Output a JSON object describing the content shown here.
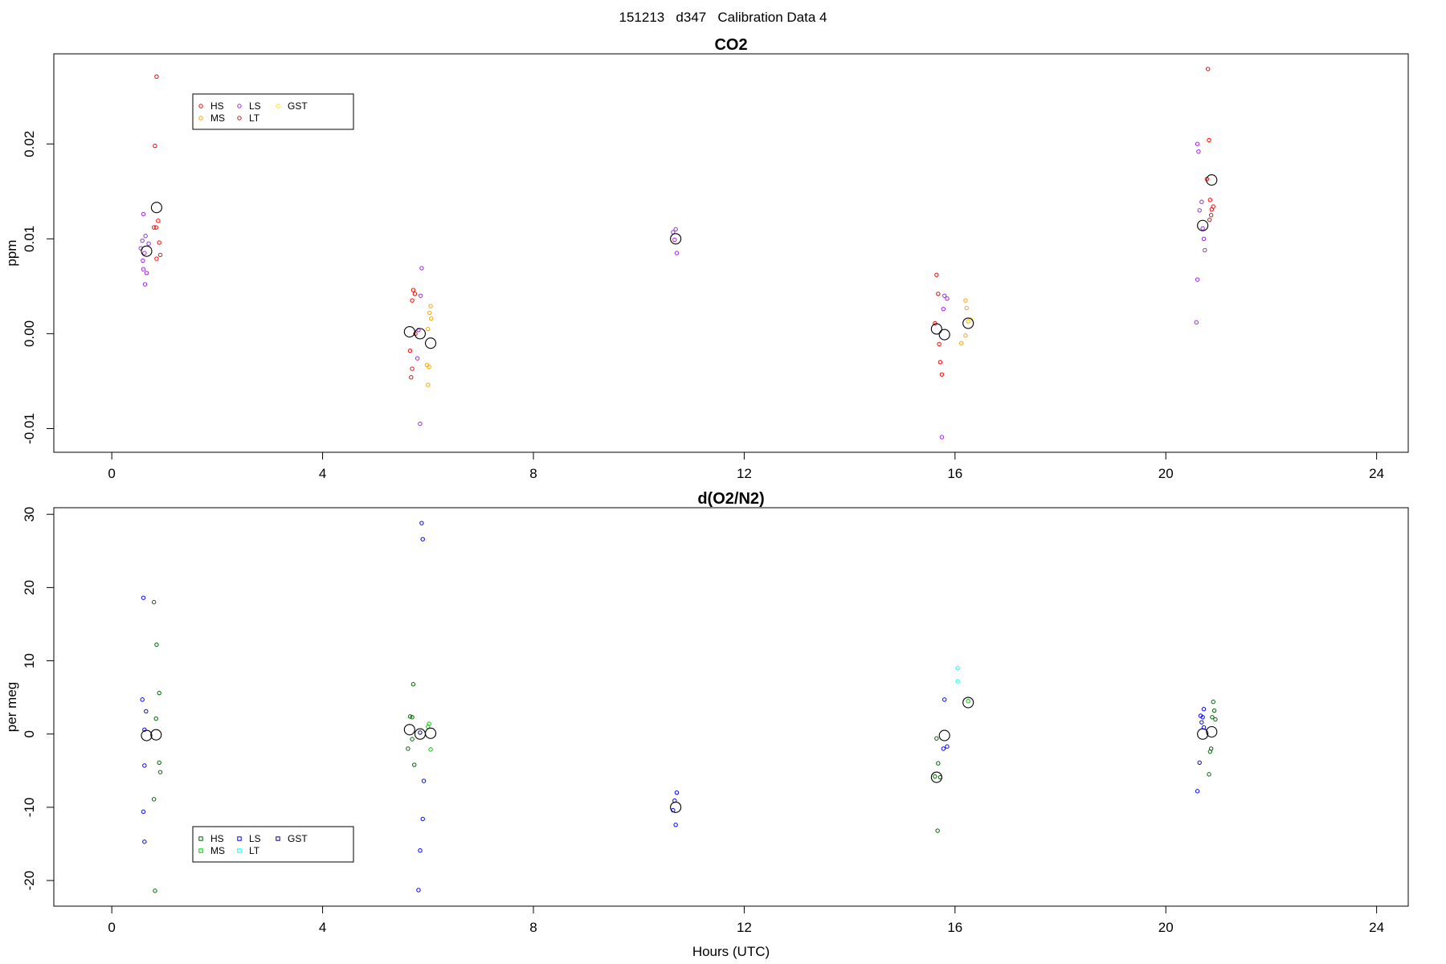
{
  "figure": {
    "title": "151213   d347   Calibration Data 4"
  },
  "chart_data": [
    {
      "type": "scatter",
      "title": "CO2",
      "xlabel": "",
      "ylabel": "ppm",
      "xlim": [
        -1.1,
        24.6
      ],
      "ylim": [
        -0.0125,
        0.0295
      ],
      "xticks": [
        0,
        4,
        8,
        12,
        16,
        20,
        24
      ],
      "yticks": [
        -0.01,
        0.0,
        0.01,
        0.02
      ],
      "ytick_labels": [
        "-0.01",
        "0.00",
        "0.01",
        "0.02"
      ],
      "grid": false,
      "legend_position": "top-left",
      "legend": [
        {
          "label": "HS",
          "color": "#ff0000"
        },
        {
          "label": "LS",
          "color": "#a020f0"
        },
        {
          "label": "GST",
          "color": "#ffe600"
        },
        {
          "label": "MS",
          "color": "#ffa500"
        },
        {
          "label": "LT",
          "color": "#b22222"
        }
      ],
      "series": [
        {
          "name": "HS",
          "color": "#ff0000",
          "points": [
            [
              0.85,
              0.0271
            ],
            [
              0.82,
              0.0198
            ],
            [
              0.88,
              0.0119
            ],
            [
              0.84,
              0.0112
            ],
            [
              0.8,
              0.0112
            ],
            [
              0.9,
              0.0096
            ],
            [
              0.92,
              0.0083
            ],
            [
              0.85,
              0.0079
            ],
            [
              5.72,
              0.0046
            ],
            [
              5.75,
              0.0042
            ],
            [
              5.7,
              0.0035
            ],
            [
              5.76,
              0.0
            ],
            [
              5.66,
              -0.0018
            ],
            [
              5.7,
              -0.0037
            ],
            [
              5.68,
              -0.0046
            ],
            [
              15.65,
              0.0062
            ],
            [
              15.68,
              0.0042
            ],
            [
              15.7,
              -0.0011
            ],
            [
              15.72,
              -0.003
            ],
            [
              15.75,
              -0.0043
            ],
            [
              15.62,
              0.0011
            ],
            [
              20.8,
              0.0279
            ],
            [
              20.82,
              0.0204
            ],
            [
              20.78,
              0.0163
            ],
            [
              20.84,
              0.0141
            ],
            [
              20.9,
              0.0134
            ],
            [
              20.87,
              0.0131
            ],
            [
              20.86,
              0.0125
            ],
            [
              20.83,
              0.012
            ]
          ]
        },
        {
          "name": "LS",
          "color": "#a020f0",
          "points": [
            [
              0.6,
              0.0126
            ],
            [
              0.64,
              0.0103
            ],
            [
              0.58,
              0.0098
            ],
            [
              0.7,
              0.0095
            ],
            [
              0.55,
              0.009
            ],
            [
              0.62,
              0.0085
            ],
            [
              0.59,
              0.0077
            ],
            [
              0.6,
              0.0068
            ],
            [
              0.66,
              0.0064
            ],
            [
              0.63,
              0.0052
            ],
            [
              5.88,
              0.0069
            ],
            [
              5.86,
              0.004
            ],
            [
              5.82,
              0.0004
            ],
            [
              5.8,
              -0.0026
            ],
            [
              5.85,
              -0.0095
            ],
            [
              10.7,
              0.011
            ],
            [
              10.65,
              0.0107
            ],
            [
              10.68,
              0.0099
            ],
            [
              10.72,
              0.0085
            ],
            [
              15.8,
              0.004
            ],
            [
              15.85,
              0.0037
            ],
            [
              15.78,
              0.0026
            ],
            [
              15.75,
              -0.0109
            ],
            [
              20.6,
              0.02
            ],
            [
              20.62,
              0.0192
            ],
            [
              20.68,
              0.0139
            ],
            [
              20.64,
              0.013
            ],
            [
              20.7,
              0.0111
            ],
            [
              20.72,
              0.01
            ],
            [
              20.74,
              0.0088
            ],
            [
              20.6,
              0.0057
            ],
            [
              20.58,
              0.0012
            ]
          ]
        },
        {
          "name": "MS",
          "color": "#ffa500",
          "points": [
            [
              6.05,
              0.0029
            ],
            [
              6.03,
              0.0022
            ],
            [
              6.06,
              0.0016
            ],
            [
              6.0,
              0.0005
            ],
            [
              6.02,
              -0.0035
            ],
            [
              5.98,
              -0.0033
            ],
            [
              6.0,
              -0.0054
            ],
            [
              16.2,
              0.0035
            ],
            [
              16.22,
              0.0027
            ],
            [
              16.25,
              0.0013
            ],
            [
              16.2,
              -0.0002
            ],
            [
              16.12,
              -0.001
            ]
          ]
        },
        {
          "name": "GST",
          "color": "#ffe600",
          "points": [
            [
              16.3,
              0.0015
            ]
          ]
        },
        {
          "name": "Mean",
          "color": "#000000",
          "points": [
            [
              0.66,
              0.0087
            ],
            [
              0.85,
              0.0133
            ],
            [
              5.65,
              0.0002
            ],
            [
              5.85,
              0.0
            ],
            [
              6.05,
              -0.001
            ],
            [
              10.7,
              0.01
            ],
            [
              15.65,
              0.0005
            ],
            [
              15.8,
              -0.0001
            ],
            [
              16.25,
              0.0011
            ],
            [
              20.7,
              0.0114
            ],
            [
              20.87,
              0.0162
            ]
          ]
        }
      ]
    },
    {
      "type": "scatter",
      "title": "d(O2/N2)",
      "xlabel": "Hours (UTC)",
      "ylabel": "per meg",
      "xlim": [
        -1.1,
        24.6
      ],
      "ylim": [
        -23.5,
        30.9
      ],
      "xticks": [
        0,
        4,
        8,
        12,
        16,
        20,
        24
      ],
      "yticks": [
        -20,
        -10,
        0,
        10,
        20,
        30
      ],
      "ytick_labels": [
        "-20",
        "-10",
        "0",
        "10",
        "20",
        "30"
      ],
      "grid": false,
      "legend_position": "bottom-left",
      "legend": [
        {
          "label": "HS",
          "color": "#006400"
        },
        {
          "label": "LS",
          "color": "#0000ff"
        },
        {
          "label": "GST",
          "color": "#00008b"
        },
        {
          "label": "MS",
          "color": "#00c800"
        },
        {
          "label": "LT",
          "color": "#00ffff"
        }
      ],
      "series": [
        {
          "name": "HS",
          "color": "#006400",
          "points": [
            [
              0.8,
              18.0
            ],
            [
              0.85,
              12.2
            ],
            [
              0.9,
              5.6
            ],
            [
              0.84,
              2.1
            ],
            [
              0.9,
              -3.9
            ],
            [
              0.92,
              -5.2
            ],
            [
              0.8,
              -8.9
            ],
            [
              0.82,
              -21.4
            ],
            [
              5.72,
              6.8
            ],
            [
              5.66,
              2.4
            ],
            [
              5.7,
              2.3
            ],
            [
              5.62,
              -2.0
            ],
            [
              5.7,
              -0.7
            ],
            [
              5.74,
              -4.2
            ],
            [
              15.65,
              -0.6
            ],
            [
              15.68,
              -4.0
            ],
            [
              15.62,
              -5.8
            ],
            [
              15.72,
              -5.9
            ],
            [
              15.67,
              -13.2
            ],
            [
              20.9,
              4.4
            ],
            [
              20.92,
              3.2
            ],
            [
              20.88,
              2.3
            ],
            [
              20.94,
              2.0
            ],
            [
              20.86,
              -2.0
            ],
            [
              20.84,
              -2.4
            ],
            [
              20.82,
              -5.5
            ]
          ]
        },
        {
          "name": "LS",
          "color": "#0000ff",
          "points": [
            [
              0.6,
              18.6
            ],
            [
              0.58,
              4.7
            ],
            [
              0.62,
              0.6
            ],
            [
              0.65,
              3.1
            ],
            [
              0.62,
              -4.3
            ],
            [
              0.6,
              -10.6
            ],
            [
              0.62,
              -14.7
            ],
            [
              5.88,
              28.8
            ],
            [
              5.9,
              26.6
            ],
            [
              5.92,
              -6.4
            ],
            [
              5.9,
              -11.6
            ],
            [
              5.85,
              -15.9
            ],
            [
              5.82,
              -21.3
            ],
            [
              10.72,
              -8.0
            ],
            [
              10.68,
              -9.1
            ],
            [
              10.65,
              -10.4
            ],
            [
              10.7,
              -12.4
            ],
            [
              15.8,
              4.7
            ],
            [
              15.85,
              -1.7
            ],
            [
              15.78,
              -2.0
            ],
            [
              20.72,
              3.4
            ],
            [
              20.66,
              2.5
            ],
            [
              20.7,
              2.3
            ],
            [
              20.68,
              1.6
            ],
            [
              20.72,
              0.9
            ],
            [
              20.64,
              -3.9
            ],
            [
              20.6,
              -7.8
            ]
          ]
        },
        {
          "name": "MS",
          "color": "#00c800",
          "points": [
            [
              6.02,
              1.4
            ],
            [
              6.0,
              1.0
            ],
            [
              6.05,
              -2.1
            ],
            [
              16.25,
              4.5
            ]
          ]
        },
        {
          "name": "LT",
          "color": "#00ffff",
          "points": [
            [
              16.05,
              9.0
            ],
            [
              16.05,
              7.2
            ]
          ]
        },
        {
          "name": "GST",
          "color": "#00008b",
          "points": [
            [
              5.85,
              0.2
            ]
          ]
        },
        {
          "name": "Mean",
          "color": "#000000",
          "points": [
            [
              0.66,
              -0.2
            ],
            [
              0.84,
              -0.1
            ],
            [
              5.65,
              0.6
            ],
            [
              5.85,
              0.0
            ],
            [
              6.05,
              0.1
            ],
            [
              10.7,
              -10.0
            ],
            [
              15.65,
              -5.9
            ],
            [
              15.8,
              -0.2
            ],
            [
              16.25,
              4.3
            ],
            [
              20.7,
              0.0
            ],
            [
              20.87,
              0.3
            ]
          ]
        }
      ]
    }
  ]
}
